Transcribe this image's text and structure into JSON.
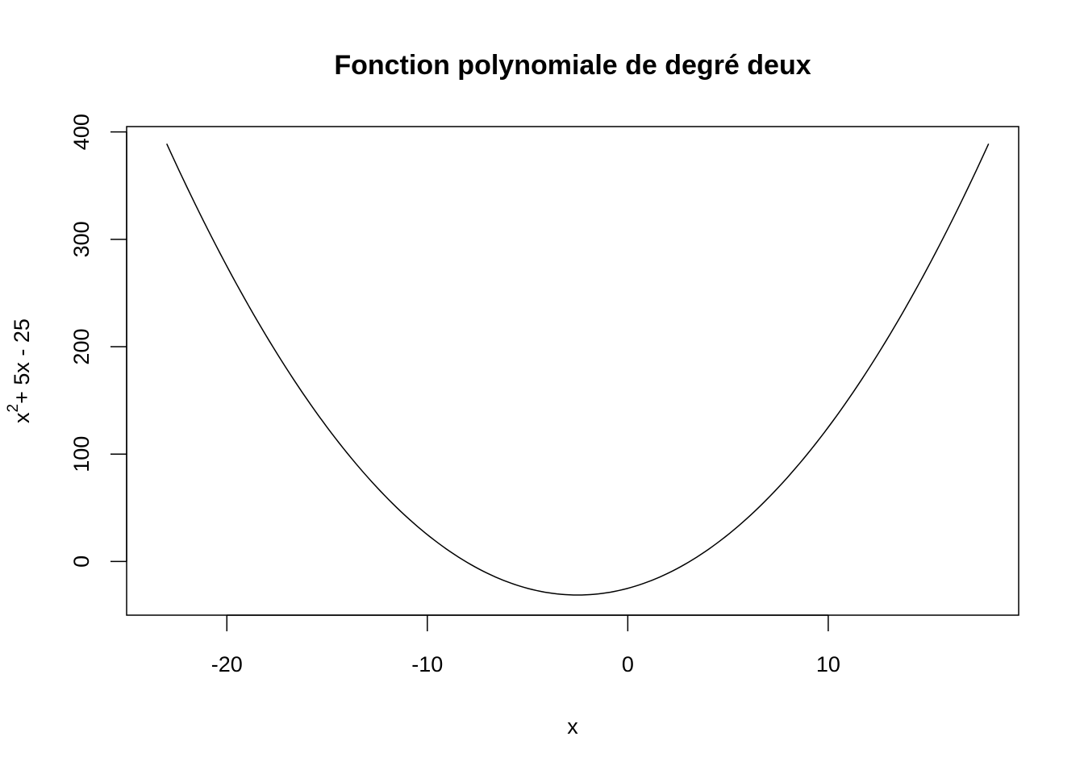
{
  "chart_data": {
    "type": "line",
    "title": "Fonction polynomiale de degré deux",
    "xlabel": "x",
    "ylabel": {
      "base": "x",
      "superscript": "2",
      "rest": "+ 5x - 25"
    },
    "xlim": [
      -25,
      19.5
    ],
    "ylim": [
      -50,
      405
    ],
    "x_ticks": [
      -20,
      -10,
      0,
      10
    ],
    "x_tick_labels": [
      "-20",
      "-10",
      "0",
      "10"
    ],
    "y_ticks": [
      0,
      100,
      200,
      300,
      400
    ],
    "y_tick_labels": [
      "0",
      "100",
      "200",
      "300",
      "400"
    ],
    "grid": false,
    "legend": "none",
    "series": [
      {
        "function": "x^2 + 5x - 25",
        "x_range": [
          -23,
          18
        ],
        "points": [
          {
            "x": -23,
            "y": 389
          },
          {
            "x": -20,
            "y": 275
          },
          {
            "x": -15,
            "y": 125
          },
          {
            "x": -10,
            "y": 25
          },
          {
            "x": -5,
            "y": -25
          },
          {
            "x": -2.5,
            "y": -31.25
          },
          {
            "x": 0,
            "y": -25
          },
          {
            "x": 5,
            "y": 25
          },
          {
            "x": 10,
            "y": 125
          },
          {
            "x": 15,
            "y": 275
          },
          {
            "x": 18,
            "y": 389
          }
        ]
      }
    ],
    "colors": {
      "line": "#000000"
    }
  }
}
